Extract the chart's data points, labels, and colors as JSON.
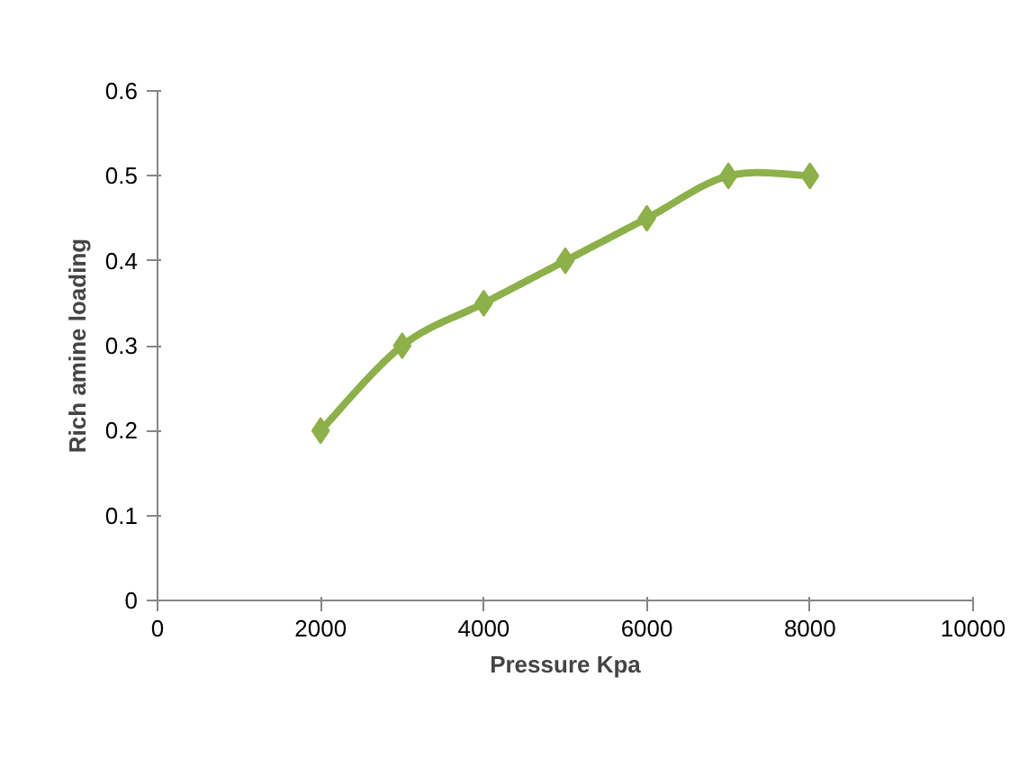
{
  "chart_data": {
    "type": "line",
    "xlabel": "Pressure Kpa",
    "ylabel": "Rich amine loading",
    "x": [
      2000,
      3000,
      4000,
      5000,
      6000,
      7000,
      8000
    ],
    "series": [
      {
        "color": "#8db04a",
        "values": [
          0.2,
          0.3,
          0.35,
          0.4,
          0.45,
          0.5,
          0.5
        ]
      }
    ],
    "xlim": [
      0,
      10000
    ],
    "xticks": [
      0,
      2000,
      4000,
      6000,
      8000,
      10000
    ],
    "ylim": [
      0,
      0.6
    ],
    "yticks": [
      0,
      0.1,
      0.2,
      0.3,
      0.4,
      0.5,
      0.6
    ],
    "grid": false,
    "marker": "diamond",
    "line_style": "solid"
  }
}
